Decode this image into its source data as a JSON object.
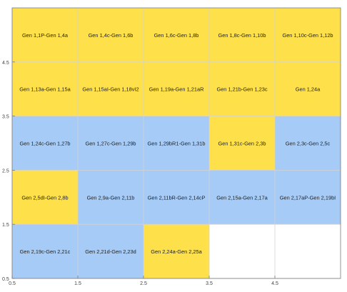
{
  "chart_data": {
    "type": "heatmap",
    "title": "",
    "xlabel": "",
    "ylabel": "",
    "xlim": [
      0.5,
      5.5
    ],
    "ylim": [
      5.5,
      0.5
    ],
    "y_reversed": true,
    "grid": true,
    "x_ticks": [
      "0.5",
      "1.5",
      "2.5",
      "3.5",
      "4.5"
    ],
    "y_ticks": [
      "0.5",
      "1.5",
      "2.5",
      "3.5",
      "4.5"
    ],
    "colors": {
      "yellow": "#fde04a",
      "blue": "#a5cbf6",
      "grid": "#d4d4d4",
      "axis": "#7a7a7a",
      "text": "#1f1f1f"
    },
    "rows": [
      [
        {
          "label": "Gen 1,1P-Gen 1,4a",
          "color": "yellow"
        },
        {
          "label": "Gen 1,4c-Gen 1,6b",
          "color": "yellow"
        },
        {
          "label": "Gen 1,6c-Gen 1,8b",
          "color": "yellow"
        },
        {
          "label": "Gen 1,8c-Gen 1,10b",
          "color": "yellow"
        },
        {
          "label": "Gen 1,10c-Gen 1,12b",
          "color": "yellow"
        }
      ],
      [
        {
          "label": "Gen 1,13a-Gen 1,15a",
          "color": "yellow"
        },
        {
          "label": "Gen 1,15aI-Gen 1,18vI2",
          "color": "yellow"
        },
        {
          "label": "Gen 1,19a-Gen 1,21aR",
          "color": "yellow"
        },
        {
          "label": "Gen 1,21b-Gen 1,23c",
          "color": "yellow"
        },
        {
          "label": "Gen 1,24a",
          "color": "yellow"
        }
      ],
      [
        {
          "label": "Gen 1,24c-Gen 1,27b",
          "color": "blue"
        },
        {
          "label": "Gen 1,27c-Gen 1,29b",
          "color": "blue"
        },
        {
          "label": "Gen 1,29bR1-Gen 1,31b",
          "color": "blue"
        },
        {
          "label": "Gen 1,31c-Gen 2,3b",
          "color": "yellow"
        },
        {
          "label": "Gen 2,3c-Gen 2,5c",
          "color": "blue"
        }
      ],
      [
        {
          "label": "Gen 2,5dI-Gen 2,8b",
          "color": "yellow"
        },
        {
          "label": "Gen 2,9a-Gen 2,11b",
          "color": "blue"
        },
        {
          "label": "Gen 2,11bR-Gen 2,14cP",
          "color": "blue"
        },
        {
          "label": "Gen 2,15a-Gen 2,17a",
          "color": "blue"
        },
        {
          "label": "Gen 2,17aP-Gen 2,19bI",
          "color": "blue"
        }
      ],
      [
        {
          "label": "Gen 2,19c-Gen 2,21c",
          "color": "blue"
        },
        {
          "label": "Gen 2,21d-Gen 2,23d",
          "color": "blue"
        },
        {
          "label": "Gen 2,24a-Gen 2,25a",
          "color": "yellow"
        },
        null,
        null
      ]
    ]
  }
}
